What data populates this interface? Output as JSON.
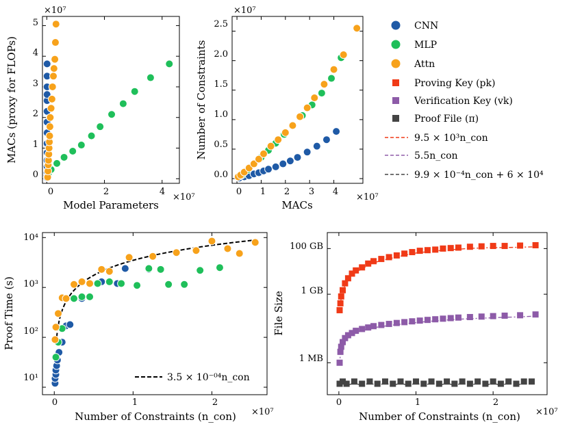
{
  "chart_data": [
    {
      "id": "macs_vs_params",
      "type": "scatter",
      "xlabel": "Model Parameters",
      "ylabel": "MACs (proxy for FLOPs)",
      "x_multiplier": "×10⁷",
      "y_multiplier": "×10⁷",
      "xlim": [
        -0.15,
        4.6
      ],
      "ylim": [
        -0.15,
        5.3
      ],
      "xticks": [
        "0",
        "2",
        "4"
      ],
      "yticks": [
        "0",
        "1",
        "2",
        "3",
        "4",
        "5"
      ],
      "series": [
        {
          "name": "CNN",
          "x": [
            0.01,
            0.01,
            0.01,
            0.01,
            0.01,
            0.01,
            0.01,
            0.01,
            0.01,
            0.01,
            0.01,
            0.01,
            0.01,
            0.01,
            0.01
          ],
          "y": [
            0.03,
            0.1,
            0.2,
            0.4,
            0.6,
            0.85,
            1.15,
            1.5,
            1.85,
            2.2,
            2.55,
            2.75,
            3.0,
            3.35,
            3.75
          ]
        },
        {
          "name": "MLP",
          "x": [
            0.05,
            0.15,
            0.35,
            0.6,
            0.9,
            1.2,
            1.55,
            1.85,
            2.25,
            2.65,
            3.05,
            3.6,
            4.25
          ],
          "y": [
            0.15,
            0.3,
            0.5,
            0.7,
            0.9,
            1.1,
            1.4,
            1.7,
            2.1,
            2.45,
            2.85,
            3.3,
            3.75
          ]
        },
        {
          "name": "Attn",
          "x": [
            0.03,
            0.04,
            0.05,
            0.06,
            0.07,
            0.08,
            0.09,
            0.1,
            0.11,
            0.12,
            0.15,
            0.18,
            0.2,
            0.23,
            0.25,
            0.28,
            0.3,
            0.32
          ],
          "y": [
            0.05,
            0.25,
            0.45,
            0.6,
            0.8,
            1.0,
            1.2,
            1.4,
            1.7,
            2.0,
            2.3,
            2.6,
            3.0,
            3.35,
            3.6,
            3.9,
            4.45,
            5.05
          ]
        }
      ]
    },
    {
      "id": "constraints_vs_macs",
      "type": "scatter",
      "xlabel": "MACs",
      "ylabel": "Number of Constraints",
      "x_multiplier": "×10⁷",
      "y_multiplier": "×10⁷",
      "xlim": [
        -0.2,
        5.2
      ],
      "ylim": [
        -0.08,
        2.75
      ],
      "xticks": [
        "0",
        "1",
        "2",
        "3",
        "4"
      ],
      "yticks": [
        "0.0",
        "0.5",
        "1.0",
        "1.5",
        "2.0",
        "2.5"
      ],
      "series": [
        {
          "name": "CNN",
          "x": [
            0.1,
            0.3,
            0.5,
            0.7,
            0.9,
            1.1,
            1.3,
            1.6,
            1.9,
            2.2,
            2.5,
            2.9,
            3.3,
            3.7,
            4.1
          ],
          "y": [
            0.01,
            0.03,
            0.05,
            0.08,
            0.1,
            0.13,
            0.16,
            0.2,
            0.25,
            0.3,
            0.36,
            0.45,
            0.55,
            0.66,
            0.8
          ]
        },
        {
          "name": "MLP",
          "x": [
            0.2,
            0.45,
            0.7,
            1.0,
            1.3,
            1.6,
            1.95,
            2.3,
            2.7,
            3.1,
            3.5,
            3.9,
            4.3
          ],
          "y": [
            0.06,
            0.15,
            0.25,
            0.36,
            0.48,
            0.6,
            0.75,
            0.9,
            1.07,
            1.25,
            1.45,
            1.7,
            2.05
          ]
        },
        {
          "name": "Attn",
          "x": [
            0.05,
            0.15,
            0.3,
            0.5,
            0.7,
            0.9,
            1.1,
            1.4,
            1.7,
            2.0,
            2.3,
            2.6,
            2.9,
            3.2,
            3.6,
            4.0,
            4.4,
            4.95
          ],
          "y": [
            0.03,
            0.06,
            0.11,
            0.18,
            0.25,
            0.33,
            0.42,
            0.55,
            0.66,
            0.78,
            0.9,
            1.05,
            1.2,
            1.37,
            1.6,
            1.85,
            2.1,
            2.55
          ]
        }
      ]
    },
    {
      "id": "proof_time",
      "type": "scatter",
      "xlabel": "Number of Constraints (n_con)",
      "ylabel": "Proof Time (s)",
      "x_multiplier": "×10⁷",
      "yscale": "log",
      "xlim": [
        -0.15,
        2.7
      ],
      "ylim_log10": [
        0.85,
        4.1
      ],
      "xticks": [
        "0",
        "1",
        "2"
      ],
      "yticks": [
        "10¹",
        "10²",
        "10³",
        "10⁴"
      ],
      "fit_label": "3.5 × 10⁻⁰⁴n_con",
      "fit_coefficient": 0.00035,
      "series": [
        {
          "name": "CNN",
          "x": [
            0.01,
            0.01,
            0.02,
            0.02,
            0.03,
            0.04,
            0.06,
            0.1,
            0.15,
            0.2,
            0.35,
            0.6,
            0.9,
            1.2,
            0.8
          ],
          "y": [
            12,
            15,
            18,
            22,
            27,
            35,
            50,
            80,
            170,
            180,
            600,
            1300,
            2400,
            2300,
            1200
          ]
        },
        {
          "name": "MLP",
          "x": [
            0.02,
            0.05,
            0.1,
            0.25,
            0.35,
            0.45,
            0.55,
            0.7,
            0.85,
            1.05,
            1.2,
            1.35,
            1.45,
            1.65,
            1.85,
            2.1
          ],
          "y": [
            40,
            80,
            150,
            600,
            650,
            650,
            1200,
            1300,
            1200,
            1100,
            2400,
            2300,
            1150,
            1150,
            2200,
            2500
          ]
        },
        {
          "name": "Attn",
          "x": [
            0.01,
            0.02,
            0.05,
            0.1,
            0.15,
            0.25,
            0.35,
            0.45,
            0.6,
            0.7,
            0.95,
            1.25,
            1.55,
            1.8,
            2.0,
            2.2,
            2.35,
            2.55
          ],
          "y": [
            90,
            160,
            300,
            620,
            600,
            1150,
            1300,
            1200,
            2300,
            2100,
            4000,
            4200,
            5000,
            5500,
            8500,
            6000,
            4800,
            8000
          ]
        }
      ]
    },
    {
      "id": "file_size",
      "type": "scatter",
      "xlabel": "Number of Constraints (n_con)",
      "ylabel": "File Size",
      "x_multiplier": "×10⁷",
      "yscale": "log",
      "xlim": [
        -0.15,
        2.7
      ],
      "ylim_log10": [
        4.6,
        11.7
      ],
      "xticks": [
        "0",
        "1",
        "2"
      ],
      "yticks": [
        "1 MB",
        "1 GB",
        "100 GB"
      ],
      "series": [
        {
          "name": "Proving Key (pk)",
          "x": [
            0.01,
            0.02,
            0.03,
            0.05,
            0.08,
            0.12,
            0.17,
            0.22,
            0.3,
            0.38,
            0.45,
            0.55,
            0.65,
            0.75,
            0.85,
            0.95,
            1.05,
            1.15,
            1.25,
            1.35,
            1.45,
            1.55,
            1.7,
            1.85,
            2.0,
            2.15,
            2.35,
            2.55
          ],
          "y": [
            200000000.0,
            400000000.0,
            800000000.0,
            1500000000.0,
            3000000000.0,
            5000000000.0,
            8000000000.0,
            11000000000.0,
            15000000000.0,
            22000000000.0,
            28000000000.0,
            35000000000.0,
            42000000000.0,
            50000000000.0,
            60000000000.0,
            70000000000.0,
            80000000000.0,
            85000000000.0,
            90000000000.0,
            100000000000.0,
            105000000000.0,
            110000000000.0,
            120000000000.0,
            125000000000.0,
            130000000000.0,
            130000000000.0,
            135000000000.0,
            140000000000.0
          ]
        },
        {
          "name": "Verification Key (vk)",
          "x": [
            0.01,
            0.02,
            0.03,
            0.05,
            0.08,
            0.12,
            0.17,
            0.22,
            0.3,
            0.38,
            0.45,
            0.55,
            0.65,
            0.75,
            0.85,
            0.95,
            1.05,
            1.15,
            1.25,
            1.35,
            1.45,
            1.55,
            1.7,
            1.85,
            2.0,
            2.15,
            2.35,
            2.55
          ],
          "y": [
            1000000.0,
            3000000.0,
            5000000.0,
            8000000.0,
            12000000.0,
            16000000.0,
            20000000.0,
            25000000.0,
            30000000.0,
            35000000.0,
            40000000.0,
            45000000.0,
            50000000.0,
            55000000.0,
            60000000.0,
            65000000.0,
            70000000.0,
            75000000.0,
            80000000.0,
            85000000.0,
            90000000.0,
            95000000.0,
            100000000.0,
            105000000.0,
            110000000.0,
            115000000.0,
            120000000.0,
            130000000.0
          ]
        },
        {
          "name": "Proof File (π)",
          "x": [
            0.01,
            0.05,
            0.1,
            0.2,
            0.3,
            0.4,
            0.5,
            0.6,
            0.7,
            0.8,
            0.9,
            1.0,
            1.1,
            1.2,
            1.3,
            1.4,
            1.5,
            1.6,
            1.7,
            1.8,
            1.9,
            2.0,
            2.1,
            2.2,
            2.3,
            2.4,
            2.5
          ],
          "y": [
            120000.0,
            150000.0,
            120000.0,
            150000.0,
            120000.0,
            150000.0,
            120000.0,
            150000.0,
            120000.0,
            150000.0,
            120000.0,
            150000.0,
            120000.0,
            150000.0,
            120000.0,
            150000.0,
            120000.0,
            150000.0,
            120000.0,
            150000.0,
            120000.0,
            150000.0,
            120000.0,
            150000.0,
            120000.0,
            150000.0,
            150000.0
          ]
        }
      ]
    }
  ],
  "legend": {
    "placement": "top-right",
    "entries": [
      {
        "label": "CNN",
        "marker": "circle",
        "color": "#1f5aa6"
      },
      {
        "label": "MLP",
        "marker": "circle",
        "color": "#1fbf5a"
      },
      {
        "label": "Attn",
        "marker": "circle",
        "color": "#f7a21b"
      },
      {
        "label": "Proving Key (pk)",
        "marker": "square",
        "color": "#f03a17"
      },
      {
        "label": "Verification Key (vk)",
        "marker": "square",
        "color": "#8d5ba8"
      },
      {
        "label": "Proof File (π)",
        "marker": "square",
        "color": "#444444"
      },
      {
        "label": "9.5 × 10³n_con",
        "marker": "dash",
        "color": "#f03a17"
      },
      {
        "label": "5.5n_con",
        "marker": "dash",
        "color": "#8d5ba8"
      },
      {
        "label": "9.9 × 10⁻⁴n_con + 6 × 10⁴",
        "marker": "dash",
        "color": "#444444"
      }
    ]
  },
  "colors": {
    "CNN": "#1f5aa6",
    "MLP": "#1fbf5a",
    "Attn": "#f7a21b",
    "pk": "#f03a17",
    "vk": "#8d5ba8",
    "proof": "#444444",
    "fit": "#000000"
  }
}
